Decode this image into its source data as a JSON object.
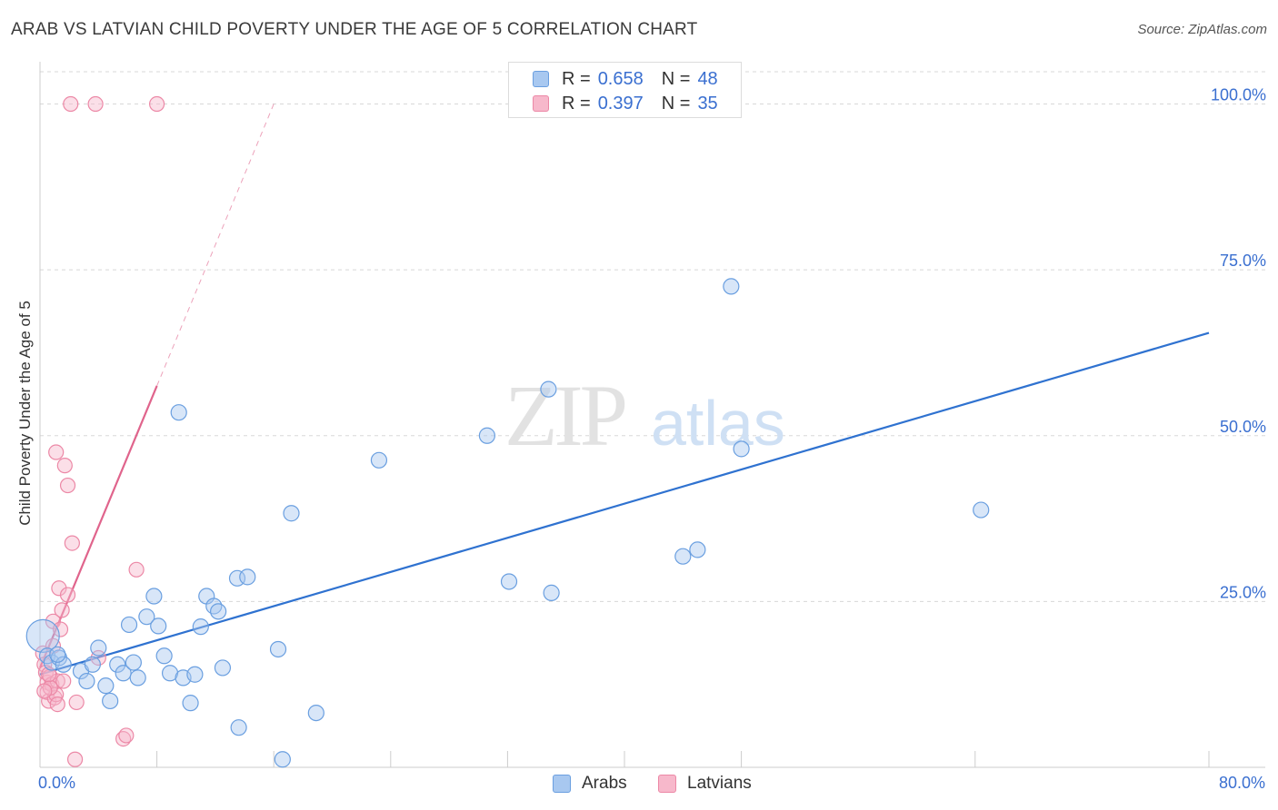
{
  "title": "ARAB VS LATVIAN CHILD POVERTY UNDER THE AGE OF 5 CORRELATION CHART",
  "source": "Source: ZipAtlas.com",
  "watermark": {
    "zip": "ZIP",
    "atlas": "atlas"
  },
  "legend_top": [
    {
      "r_label": "R =",
      "r_value": "0.658",
      "n_label": "N =",
      "n_value": "48"
    },
    {
      "r_label": "R =",
      "r_value": "0.397",
      "n_label": "N =",
      "n_value": "35"
    }
  ],
  "legend_bottom": [
    "Arabs",
    "Latvians"
  ],
  "colors": {
    "arabs_fill": "#a8c8f0",
    "arabs_stroke": "#6a9fe0",
    "arabs_line": "#2f72d0",
    "latvians_fill": "#f7b8cb",
    "latvians_stroke": "#ec88a6",
    "latvians_line": "#e0648c",
    "tick_text": "#3a6fd0",
    "grid": "#d8d8d8"
  },
  "chart_data": {
    "type": "scatter",
    "title": "ARAB VS LATVIAN CHILD POVERTY UNDER THE AGE OF 5 CORRELATION CHART",
    "xlabel": "",
    "ylabel": "Child Poverty Under the Age of 5",
    "xlim": [
      0,
      80
    ],
    "ylim": [
      0,
      105
    ],
    "x_tick_labels": [
      "0.0%",
      "80.0%"
    ],
    "y_ticks": [
      25,
      50,
      75,
      100
    ],
    "y_tick_labels": [
      "25.0%",
      "50.0%",
      "75.0%",
      "100.0%"
    ],
    "grid": true,
    "legend_position": "top-center",
    "series": [
      {
        "name": "Arabs",
        "R": 0.658,
        "N": 48,
        "trend": {
          "x0": 0,
          "y0": 14.0,
          "x1": 80,
          "y1": 65.5
        },
        "points": [
          [
            0.2,
            19.8
          ],
          [
            0.5,
            16.8
          ],
          [
            0.8,
            15.8
          ],
          [
            1.3,
            16.5
          ],
          [
            1.6,
            15.5
          ],
          [
            2.8,
            14.5
          ],
          [
            3.2,
            13.0
          ],
          [
            3.6,
            15.5
          ],
          [
            4.0,
            18.0
          ],
          [
            4.5,
            12.3
          ],
          [
            4.8,
            10.0
          ],
          [
            5.3,
            15.5
          ],
          [
            5.7,
            14.2
          ],
          [
            6.1,
            21.5
          ],
          [
            6.4,
            15.8
          ],
          [
            6.7,
            13.5
          ],
          [
            7.3,
            22.7
          ],
          [
            7.8,
            25.8
          ],
          [
            8.1,
            21.3
          ],
          [
            8.5,
            16.8
          ],
          [
            8.9,
            14.2
          ],
          [
            9.5,
            53.5
          ],
          [
            9.8,
            13.5
          ],
          [
            10.3,
            9.7
          ],
          [
            10.6,
            14.0
          ],
          [
            11.0,
            21.2
          ],
          [
            11.4,
            25.8
          ],
          [
            11.9,
            24.3
          ],
          [
            12.2,
            23.5
          ],
          [
            12.5,
            15.0
          ],
          [
            13.6,
            6.0
          ],
          [
            13.5,
            28.5
          ],
          [
            14.2,
            28.7
          ],
          [
            16.3,
            17.8
          ],
          [
            16.6,
            1.2
          ],
          [
            17.2,
            38.3
          ],
          [
            18.9,
            8.2
          ],
          [
            23.2,
            46.3
          ],
          [
            30.6,
            50.0
          ],
          [
            32.1,
            28.0
          ],
          [
            34.8,
            57.0
          ],
          [
            35.0,
            26.3
          ],
          [
            44.0,
            31.8
          ],
          [
            45.0,
            32.8
          ],
          [
            47.3,
            72.5
          ],
          [
            48.0,
            48.0
          ],
          [
            64.4,
            38.8
          ],
          [
            1.2,
            17.0
          ]
        ]
      },
      {
        "name": "Latvians",
        "R": 0.397,
        "N": 35,
        "trend": {
          "x0": 0,
          "y0": 15.0,
          "x1": 8.0,
          "y1": 57.5
        },
        "trend_dashed": {
          "x0": 8.0,
          "y0": 57.5,
          "x1": 16.0,
          "y1": 100.0
        },
        "points": [
          [
            0.2,
            17.2
          ],
          [
            0.3,
            15.5
          ],
          [
            0.4,
            14.3
          ],
          [
            0.5,
            12.8
          ],
          [
            0.5,
            11.3
          ],
          [
            0.6,
            10.0
          ],
          [
            0.7,
            13.7
          ],
          [
            0.8,
            12.5
          ],
          [
            0.9,
            18.3
          ],
          [
            0.9,
            22.0
          ],
          [
            1.0,
            10.5
          ],
          [
            1.1,
            11.0
          ],
          [
            1.2,
            13.0
          ],
          [
            1.2,
            9.5
          ],
          [
            1.1,
            47.5
          ],
          [
            1.3,
            27.0
          ],
          [
            1.4,
            20.8
          ],
          [
            1.5,
            23.7
          ],
          [
            1.7,
            45.5
          ],
          [
            1.9,
            42.5
          ],
          [
            1.9,
            26.0
          ],
          [
            2.2,
            33.8
          ],
          [
            2.5,
            9.8
          ],
          [
            2.4,
            1.2
          ],
          [
            4.0,
            16.5
          ],
          [
            5.7,
            4.3
          ],
          [
            5.9,
            4.8
          ],
          [
            6.6,
            29.8
          ],
          [
            2.1,
            100.0
          ],
          [
            3.8,
            100.0
          ],
          [
            8.0,
            100.0
          ],
          [
            0.7,
            12.0
          ],
          [
            1.6,
            13.0
          ],
          [
            0.3,
            11.5
          ],
          [
            0.6,
            14.0
          ]
        ]
      }
    ]
  }
}
